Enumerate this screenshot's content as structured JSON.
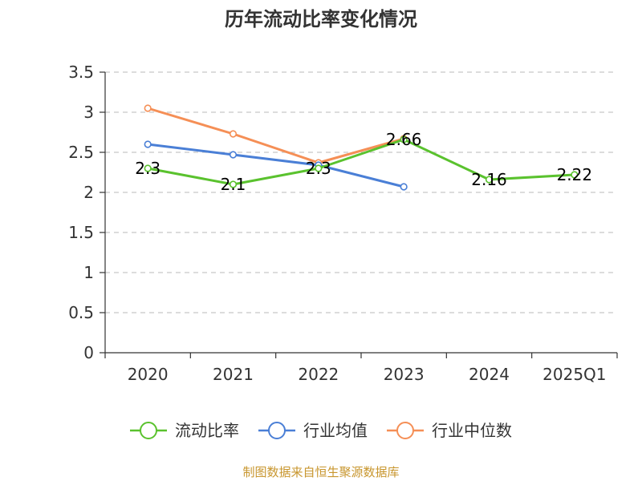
{
  "source_note": "制图数据来自恒生聚源数据库",
  "chart_data": {
    "type": "line",
    "title": "历年流动比率变化情况",
    "categories": [
      "2020",
      "2021",
      "2022",
      "2023",
      "2024",
      "2025Q1"
    ],
    "y_ticks": [
      "0",
      "0.5",
      "1",
      "1.5",
      "2",
      "2.5",
      "3",
      "3.5"
    ],
    "ylim": [
      0,
      3.5
    ],
    "grid": "horizontal-dashed",
    "legend_position": "bottom-center",
    "series": [
      {
        "name": "流动比率",
        "color": "#5ac22e",
        "values": [
          2.3,
          2.1,
          2.3,
          2.66,
          2.16,
          2.22
        ],
        "labels": [
          "2.3",
          "2.1",
          "2.3",
          "2.66",
          "2.16",
          "2.22"
        ]
      },
      {
        "name": "行业均值",
        "color": "#4a7fd6",
        "values": [
          2.6,
          2.47,
          2.34,
          2.07,
          null,
          null
        ]
      },
      {
        "name": "行业中位数",
        "color": "#f58f56",
        "values": [
          3.05,
          2.73,
          2.37,
          2.67,
          null,
          null
        ]
      }
    ]
  }
}
